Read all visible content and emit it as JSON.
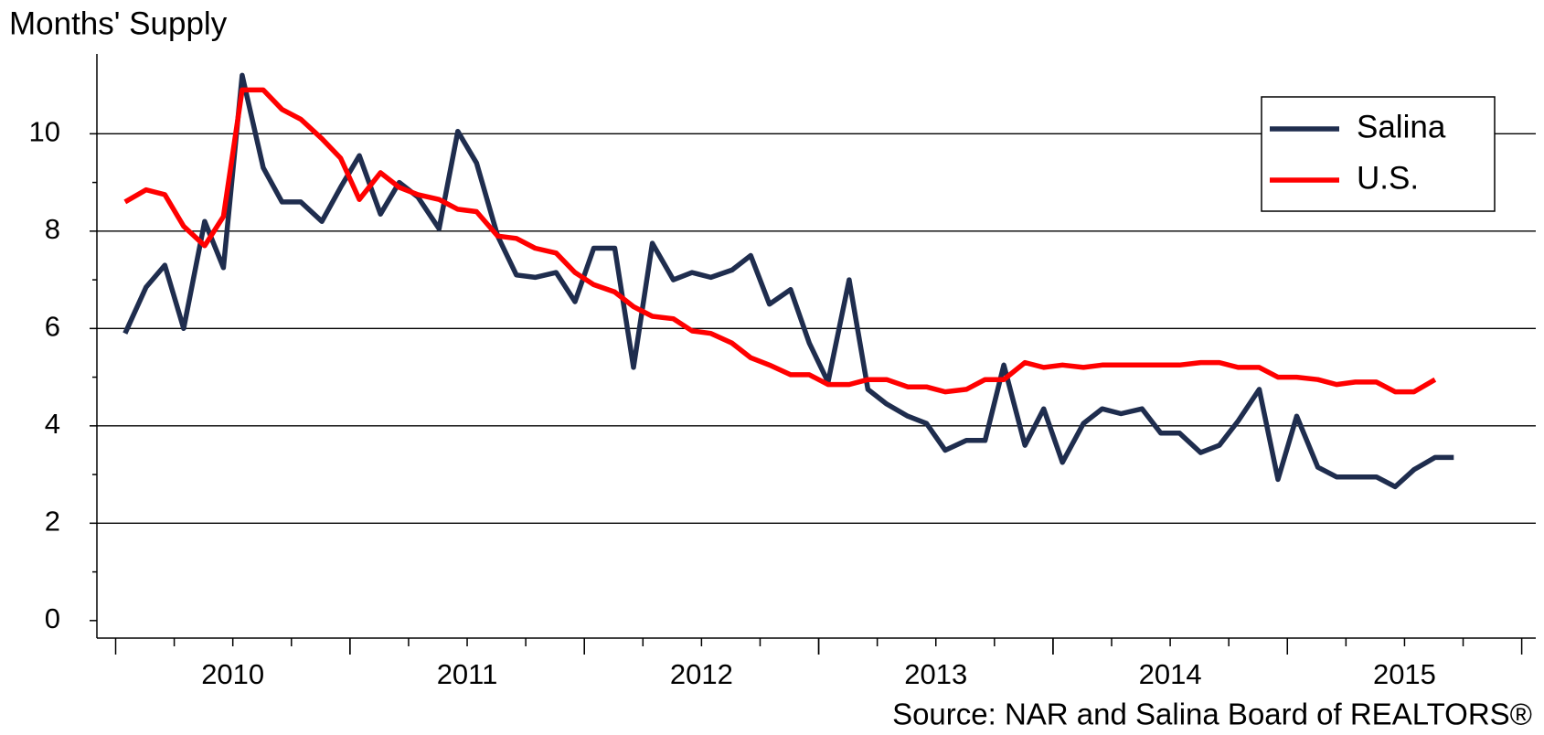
{
  "chart_data": {
    "type": "line",
    "title": "Months' Supply",
    "source": "Source: NAR and Salina Board of REALTORS®",
    "x": [
      2009.54,
      2009.63,
      2009.71,
      2009.79,
      2009.88,
      2009.96,
      2010.04,
      2010.13,
      2010.21,
      2010.29,
      2010.38,
      2010.46,
      2010.54,
      2010.63,
      2010.71,
      2010.79,
      2010.88,
      2010.96,
      2011.04,
      2011.13,
      2011.21,
      2011.29,
      2011.38,
      2011.46,
      2011.54,
      2011.63,
      2011.71,
      2011.79,
      2011.88,
      2011.96,
      2012.04,
      2012.13,
      2012.21,
      2012.29,
      2012.38,
      2012.46,
      2012.54,
      2012.63,
      2012.71,
      2012.79,
      2012.88,
      2012.96,
      2013.04,
      2013.13,
      2013.21,
      2013.29,
      2013.38,
      2013.46,
      2013.54,
      2013.63,
      2013.71,
      2013.79,
      2013.88,
      2013.96,
      2014.04,
      2014.13,
      2014.21,
      2014.29,
      2014.38,
      2014.46,
      2014.54,
      2014.63,
      2014.71,
      2014.79,
      2014.88,
      2014.96,
      2015.04,
      2015.13,
      2015.21
    ],
    "series": [
      {
        "name": "Salina",
        "color": "#1f2d4e",
        "values": [
          5.9,
          6.85,
          7.3,
          6.0,
          8.2,
          7.25,
          11.2,
          9.3,
          8.6,
          8.6,
          8.2,
          8.9,
          9.55,
          8.35,
          9.0,
          8.7,
          8.05,
          10.05,
          9.4,
          7.9,
          7.1,
          7.05,
          7.15,
          6.55,
          7.65,
          7.65,
          5.2,
          7.75,
          7.0,
          7.15,
          7.05,
          7.2,
          7.5,
          6.5,
          6.8,
          5.7,
          4.9,
          7.0,
          4.75,
          4.45,
          4.2,
          4.05,
          3.5,
          3.7,
          3.7,
          5.25,
          3.6,
          4.35,
          3.25,
          4.05,
          4.35,
          4.25,
          4.35,
          3.85,
          3.85,
          3.45,
          3.6,
          4.1,
          4.75,
          2.9,
          4.2,
          3.15,
          2.95,
          2.95,
          2.95,
          2.75,
          3.1,
          3.35,
          3.35
        ]
      },
      {
        "name": "U.S.",
        "color": "#ff0000",
        "values": [
          8.6,
          8.85,
          8.75,
          8.1,
          7.7,
          8.3,
          10.9,
          10.9,
          10.5,
          10.3,
          9.9,
          9.5,
          8.65,
          9.2,
          8.9,
          8.75,
          8.65,
          8.45,
          8.4,
          7.9,
          7.85,
          7.65,
          7.55,
          7.15,
          6.9,
          6.75,
          6.45,
          6.25,
          6.2,
          5.95,
          5.9,
          5.7,
          5.4,
          5.25,
          5.05,
          5.05,
          4.85,
          4.85,
          4.95,
          4.95,
          4.8,
          4.8,
          4.7,
          4.75,
          4.95,
          4.95,
          5.3,
          5.2,
          5.25,
          5.2,
          5.25,
          5.25,
          5.25,
          5.25,
          5.25,
          5.3,
          5.3,
          5.2,
          5.2,
          5.0,
          5.0,
          4.95,
          4.85,
          4.9,
          4.9,
          4.7,
          4.7,
          4.95,
          null
        ]
      }
    ],
    "xlim": [
      2009.42,
      2015.56
    ],
    "xticks": [
      2010,
      2011,
      2012,
      2013,
      2014,
      2015
    ],
    "ylim": [
      -0.36,
      11.64
    ],
    "yticks": [
      0,
      2,
      4,
      6,
      8,
      10
    ],
    "grid": true,
    "legend": "upper right"
  }
}
